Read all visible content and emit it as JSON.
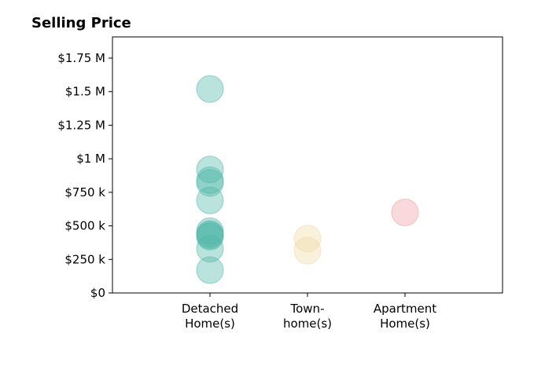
{
  "chart_data": {
    "type": "scatter",
    "title": "Selling Price",
    "xlabel": "",
    "ylabel": "",
    "categories": [
      "Detached\nHome(s)",
      "Town-\nhome(s)",
      "Apartment\nHome(s)"
    ],
    "ylim": [
      0,
      1900000
    ],
    "yticks": [
      {
        "value": 0,
        "label": "$0"
      },
      {
        "value": 250000,
        "label": "$250 k"
      },
      {
        "value": 500000,
        "label": "$500 k"
      },
      {
        "value": 750000,
        "label": "$750 k"
      },
      {
        "value": 1000000,
        "label": "$1 M"
      },
      {
        "value": 1250000,
        "label": "$1.25 M"
      },
      {
        "value": 1500000,
        "label": "$1.5 M"
      },
      {
        "value": 1750000,
        "label": "$1.75 M"
      }
    ],
    "grid": false,
    "series": [
      {
        "category": "Detached\nHome(s)",
        "color": "#4db6a6",
        "values": [
          1520000,
          920000,
          840000,
          820000,
          690000,
          460000,
          440000,
          430000,
          420000,
          330000,
          170000
        ]
      },
      {
        "category": "Town-\nhome(s)",
        "color": "#f0d9a4",
        "values": [
          405000,
          315000
        ]
      },
      {
        "category": "Apartment\nHome(s)",
        "color": "#f19aa0",
        "values": [
          600000
        ]
      }
    ]
  }
}
